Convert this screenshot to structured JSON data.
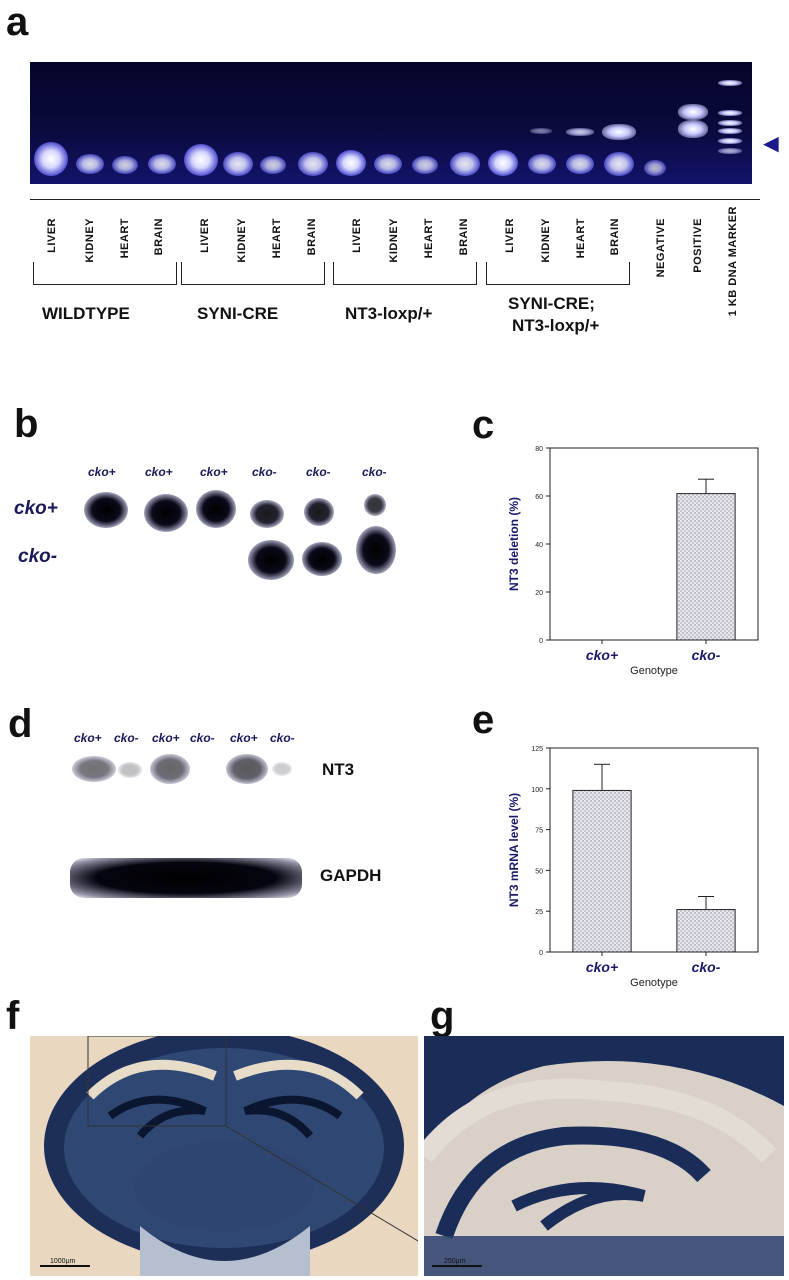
{
  "panels": {
    "a": "a",
    "b": "b",
    "c": "c",
    "d": "d",
    "e": "e",
    "f": "f",
    "g": "g"
  },
  "panel_a": {
    "lanes": [
      "LIVER",
      "KIDNEY",
      "HEART",
      "BRAIN",
      "LIVER",
      "KIDNEY",
      "HEART",
      "BRAIN",
      "LIVER",
      "KIDNEY",
      "HEART",
      "BRAIN",
      "LIVER",
      "KIDNEY",
      "HEART",
      "BRAIN",
      "NEGATIVE",
      "POSITIVE",
      "1 KB DNA MARKER"
    ],
    "groups": [
      "WILDTYPE",
      "SYNI-CRE",
      "NT3-loxp/+",
      "SYNI-CRE;",
      "NT3-loxp/+"
    ],
    "arrow": "◄"
  },
  "panel_b": {
    "columns": [
      "cko+",
      "cko+",
      "cko+",
      "cko-",
      "cko-",
      "cko-"
    ],
    "rows": [
      "cko+",
      "cko-"
    ]
  },
  "panel_d": {
    "columns": [
      "cko+",
      "cko-",
      "cko+",
      "cko-",
      "cko+",
      "cko-"
    ],
    "rows": [
      "NT3",
      "GAPDH"
    ]
  },
  "panel_f": {
    "scale": "1000μm"
  },
  "panel_g": {
    "scale": "250μm"
  },
  "colors": {
    "bar_fill": "#e8e8f2",
    "axis_label": "#1a1a6a"
  },
  "chart_data": [
    {
      "type": "bar",
      "categories": [
        "cko+",
        "cko-"
      ],
      "values": [
        0,
        61
      ],
      "errors": [
        0,
        6
      ],
      "ylabel": "NT3 deletion (%)",
      "xlabel": "Genotype",
      "ylim": [
        0,
        80
      ],
      "yticks": [
        0,
        20,
        40,
        60,
        80
      ],
      "grid": false
    },
    {
      "type": "bar",
      "categories": [
        "cko+",
        "cko-"
      ],
      "values": [
        99,
        26
      ],
      "errors": [
        16,
        8
      ],
      "ylabel": "NT3 mRNA level (%)",
      "xlabel": "Genotype",
      "ylim": [
        0,
        125
      ],
      "yticks": [
        0,
        25,
        50,
        75,
        100,
        125
      ],
      "grid": false
    }
  ]
}
